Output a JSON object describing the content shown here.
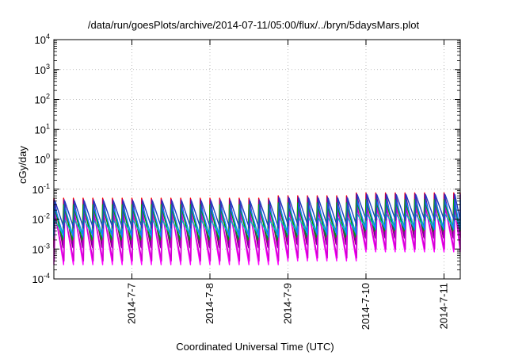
{
  "chart_data": {
    "type": "line",
    "title": "/data/run/goesPlots/archive/2014-07-11/05:00/flux/../bryn/5daysMars.plot",
    "xlabel": "Coordinated Universal Time (UTC)",
    "ylabel": "cGy/day",
    "xlim": [
      "2014-07-06 00:00",
      "2014-07-11 05:00"
    ],
    "ylim": [
      0.0001,
      10000
    ],
    "y_scale": "log",
    "grid": true,
    "legend": "none",
    "x_ticks": [
      {
        "label": "2014-7-7",
        "value": "2014-07-07"
      },
      {
        "label": "2014-7-8",
        "value": "2014-07-08"
      },
      {
        "label": "2014-7-9",
        "value": "2014-07-09"
      },
      {
        "label": "2014-7-10",
        "value": "2014-07-10"
      },
      {
        "label": "2014-7-11",
        "value": "2014-07-11"
      }
    ],
    "y_ticks": [
      {
        "base": "10",
        "exp": "-4",
        "value": 0.0001
      },
      {
        "base": "10",
        "exp": "-3",
        "value": 0.001
      },
      {
        "base": "10",
        "exp": "-2",
        "value": 0.01
      },
      {
        "base": "10",
        "exp": "-1",
        "value": 0.1
      },
      {
        "base": "10",
        "exp": "0",
        "value": 1
      },
      {
        "base": "10",
        "exp": "1",
        "value": 10
      },
      {
        "base": "10",
        "exp": "2",
        "value": 100
      },
      {
        "base": "10",
        "exp": "3",
        "value": 1000
      },
      {
        "base": "10",
        "exp": "4",
        "value": 10000
      }
    ],
    "pattern": {
      "shape": "sawtooth",
      "period_hours": 3,
      "phases": [
        {
          "from": "2014-07-06 00:00",
          "to": "2014-07-08 19:00"
        },
        {
          "from": "2014-07-08 19:00",
          "to": "2014-07-09 20:00"
        },
        {
          "from": "2014-07-09 20:00",
          "to": "2014-07-11 05:00"
        }
      ]
    },
    "series": [
      {
        "color": "#ff0000",
        "peak": [
          0.05,
          0.06,
          0.075
        ],
        "trough": [
          0.0012,
          0.0015,
          0.0025
        ]
      },
      {
        "color": "#7000a0",
        "peak": [
          0.045,
          0.055,
          0.07
        ],
        "trough": [
          0.0011,
          0.0014,
          0.0023
        ]
      },
      {
        "color": "#ff00ff",
        "peak": [
          0.02,
          0.025,
          0.03
        ],
        "trough": [
          0.0003,
          0.0004,
          0.0008
        ]
      },
      {
        "color": "#d000d0",
        "peak": [
          0.015,
          0.02,
          0.025
        ],
        "trough": [
          0.0004,
          0.0005,
          0.001
        ]
      },
      {
        "color": "#00a000",
        "peak": [
          0.03,
          0.035,
          0.045
        ],
        "trough": [
          0.002,
          0.0025,
          0.004
        ]
      },
      {
        "color": "#00c0c0",
        "peak": [
          0.01,
          0.012,
          0.016
        ],
        "trough": [
          0.003,
          0.0035,
          0.005
        ]
      },
      {
        "color": "#1080ff",
        "peak": [
          0.028,
          0.033,
          0.043
        ],
        "trough": [
          0.0025,
          0.003,
          0.0045
        ]
      },
      {
        "color": "#2040c0",
        "peak": [
          0.04,
          0.05,
          0.065
        ],
        "trough": [
          0.005,
          0.006,
          0.009
        ]
      }
    ]
  }
}
